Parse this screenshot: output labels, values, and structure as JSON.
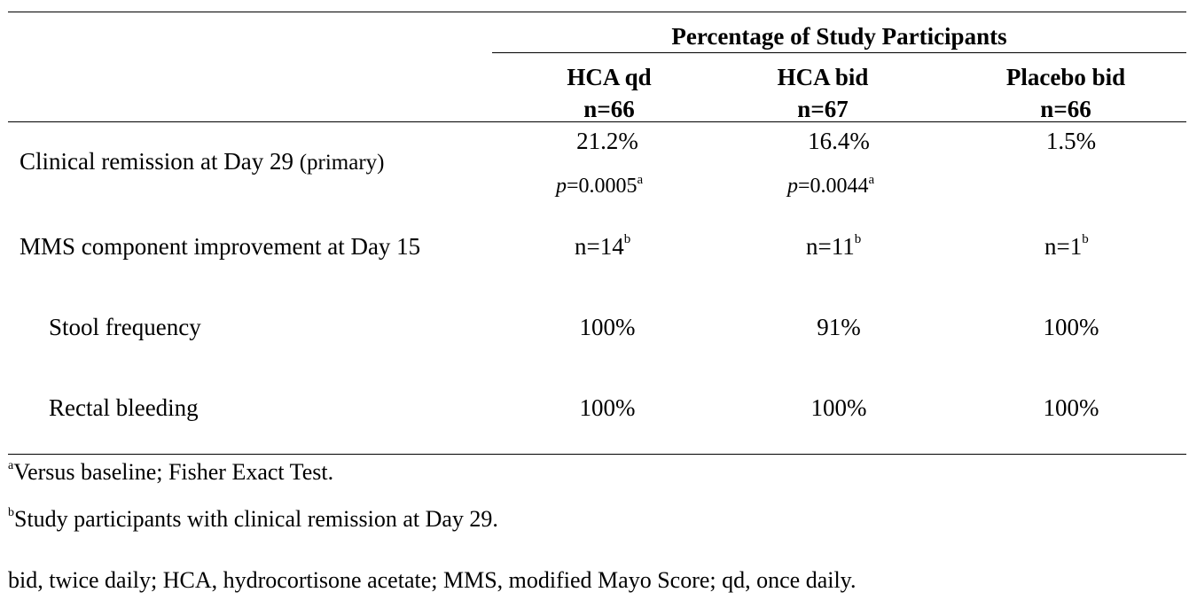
{
  "table": {
    "group_header": "Percentage of Study Participants",
    "columns": [
      {
        "name": "HCA qd",
        "n": "n=66"
      },
      {
        "name": "HCA bid",
        "n": "n=67"
      },
      {
        "name": "Placebo bid",
        "n": "n=66"
      }
    ],
    "rows": {
      "remission": {
        "label": "Clinical remission at Day 29",
        "label_suffix": "(primary)",
        "values": [
          "21.2%",
          "16.4%",
          "1.5%"
        ],
        "p_values": [
          {
            "prefix": "p",
            "value": "=0.0005",
            "sup": "a"
          },
          {
            "prefix": "p",
            "value": "=0.0044",
            "sup": "a"
          }
        ]
      },
      "mms": {
        "label": "MMS component improvement at Day 15",
        "values": [
          {
            "value": "n=14",
            "sup": "b"
          },
          {
            "value": "n=11",
            "sup": "b"
          },
          {
            "value": "n=1",
            "sup": "b"
          }
        ]
      },
      "stool": {
        "label": "Stool frequency",
        "values": [
          "100%",
          "91%",
          "100%"
        ]
      },
      "bleeding": {
        "label": "Rectal bleeding",
        "values": [
          "100%",
          "100%",
          "100%"
        ]
      }
    }
  },
  "footnotes": {
    "a": {
      "mark": "a",
      "text": "Versus baseline; Fisher Exact Test."
    },
    "b": {
      "mark": "b",
      "text": "Study participants with clinical remission at Day 29."
    },
    "abbreviations": "bid, twice daily; HCA, hydrocortisone acetate; MMS, modified Mayo Score; qd, once daily."
  }
}
